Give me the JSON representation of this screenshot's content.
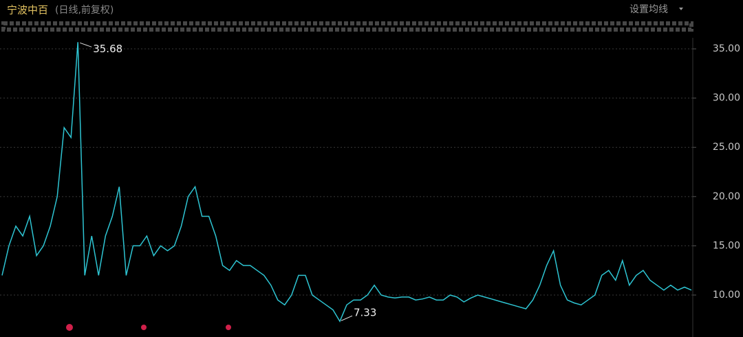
{
  "chart_data": {
    "type": "line",
    "title": "宁波中百",
    "subtitle": "(日线,前复权)",
    "button": "设置均线",
    "values": [
      12,
      15,
      17,
      16,
      18,
      14,
      15,
      17,
      20,
      27,
      26,
      35.68,
      12,
      16,
      12,
      16,
      18,
      21,
      12,
      15,
      15,
      16,
      14,
      15,
      14.5,
      15,
      17,
      20,
      21,
      18,
      18,
      16,
      13,
      12.5,
      13.5,
      13,
      13,
      12.5,
      12,
      11,
      9.5,
      9,
      10,
      12,
      12,
      10,
      9.5,
      9,
      8.5,
      7.33,
      9,
      9.5,
      9.5,
      10,
      11,
      10,
      9.8,
      9.7,
      9.8,
      9.8,
      9.5,
      9.6,
      9.8,
      9.5,
      9.5,
      10,
      9.8,
      9.3,
      9.7,
      10,
      9.8,
      9.6,
      9.4,
      9.2,
      9,
      8.8,
      8.6,
      9.5,
      11,
      13,
      14.5,
      11,
      9.5,
      9.2,
      9,
      9.5,
      10,
      12,
      12.5,
      11.5,
      13.5,
      11,
      12,
      12.5,
      11.5,
      11,
      10.5,
      11,
      10.5,
      10.8,
      10.5
    ],
    "color": "#2ec5d3",
    "high": 35.68,
    "low": 7.33,
    "ylim": [
      5.74,
      36.12
    ],
    "yticks": [
      {
        "value": 10,
        "label": "10.00"
      },
      {
        "value": 15,
        "label": "15.00"
      },
      {
        "value": 20,
        "label": "20.00"
      },
      {
        "value": 25,
        "label": "25.00"
      },
      {
        "value": 30,
        "label": "30.00"
      },
      {
        "value": 35,
        "label": "35.00"
      }
    ],
    "grid": true
  }
}
